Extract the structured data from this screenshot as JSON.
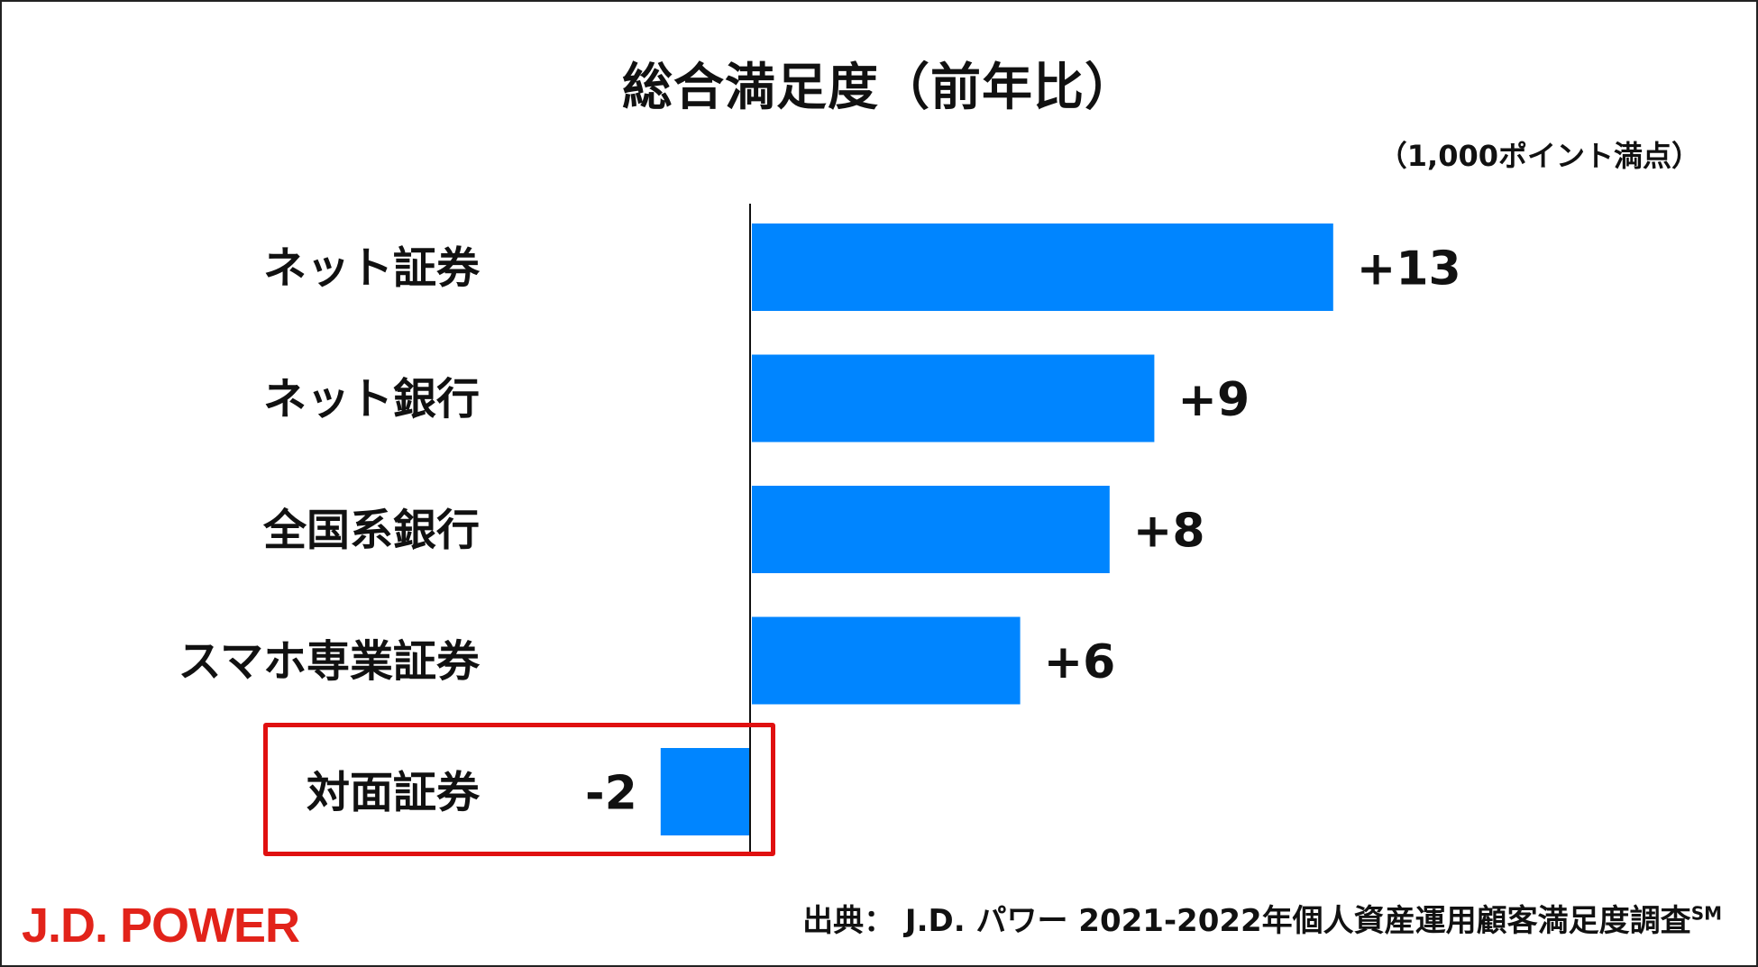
{
  "chart_data": {
    "type": "bar",
    "orientation": "horizontal",
    "title": "総合満足度（前年比）",
    "unit_note": "（1,000ポイント満点）",
    "categories": [
      "ネット証券",
      "ネット銀行",
      "全国系銀行",
      "スマホ専業証券",
      "対面証券"
    ],
    "values": [
      13,
      9,
      8,
      6,
      -2
    ],
    "value_labels": [
      "+13",
      "+9",
      "+8",
      "+6",
      "-2"
    ],
    "highlighted_category": "対面証券",
    "bar_color": "#0085ff",
    "highlight_color": "#e01010",
    "grid": false
  },
  "footer": {
    "logo": "J.D. POWER",
    "logo_color": "#e2231a",
    "source_text": "出典：  J.D. パワー 2021-2022年個人資産運用顧客満足度調査",
    "source_sup": "SM"
  }
}
